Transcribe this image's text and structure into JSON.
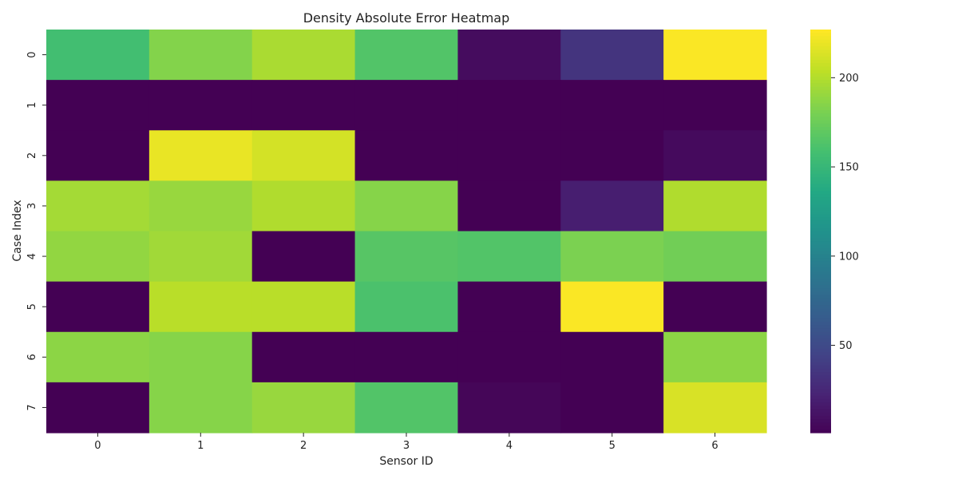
{
  "chart_data": {
    "type": "heatmap",
    "title": "Density Absolute Error Heatmap",
    "xlabel": "Sensor ID",
    "ylabel": "Case Index",
    "x_categories": [
      "0",
      "1",
      "2",
      "3",
      "4",
      "5",
      "6"
    ],
    "y_categories": [
      "0",
      "1",
      "2",
      "3",
      "4",
      "5",
      "6",
      "7"
    ],
    "values": [
      [
        158,
        185,
        198,
        165,
        8,
        35,
        226
      ],
      [
        1,
        1,
        1,
        1,
        1,
        1,
        1
      ],
      [
        1,
        220,
        212,
        1,
        1,
        1,
        7
      ],
      [
        196,
        192,
        200,
        186,
        1,
        20,
        200
      ],
      [
        190,
        195,
        1,
        167,
        165,
        182,
        178
      ],
      [
        1,
        203,
        203,
        162,
        1,
        226,
        1
      ],
      [
        188,
        186,
        1,
        1,
        1,
        1,
        188
      ],
      [
        1,
        186,
        192,
        165,
        4,
        1,
        214
      ]
    ],
    "colormap": "viridis",
    "value_range": [
      1,
      227
    ],
    "colorbar_ticks": [
      50,
      100,
      150,
      200
    ],
    "grid": false,
    "legend": "colorbar-right"
  }
}
